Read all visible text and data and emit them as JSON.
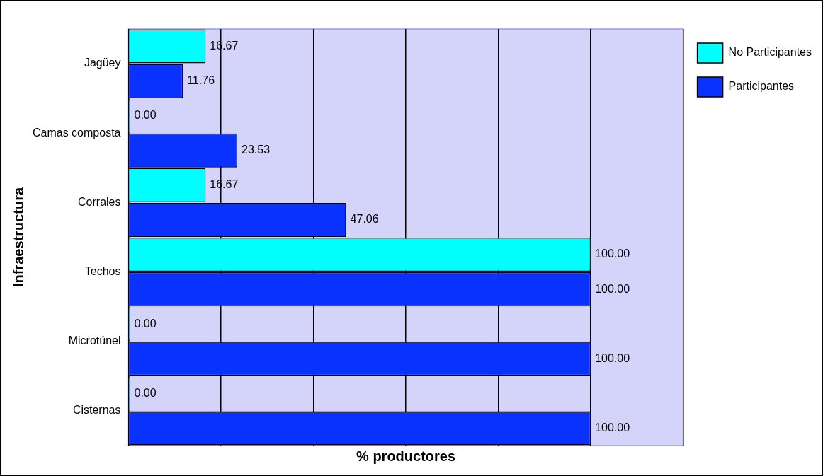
{
  "chart_data": {
    "type": "bar",
    "orientation": "horizontal",
    "xlabel": "% productores",
    "ylabel": "Infraestructura",
    "categories": [
      "Jagüey",
      "Camas composta",
      "Corrales",
      "Techos",
      "Microtúnel",
      "Cisternas"
    ],
    "series": [
      {
        "name": "No Participantes",
        "color": "#00ffff",
        "values": [
          16.67,
          0,
          16.67,
          100,
          0,
          0
        ],
        "value_labels": [
          "16.67",
          "0.00",
          "16.67",
          "100.00",
          "0.00",
          "0.00"
        ]
      },
      {
        "name": "Participantes",
        "color": "#0a32ff",
        "values": [
          11.76,
          23.53,
          47.06,
          100,
          100,
          100
        ],
        "value_labels": [
          "11.76",
          "23.53",
          "47.06",
          "100.00",
          "100.00",
          "100.00"
        ]
      }
    ],
    "xlim": [
      0,
      120
    ],
    "xticks": [
      {
        "value": 0,
        "label": null
      },
      {
        "value": 20,
        "label": null
      },
      {
        "value": 40,
        "label": null
      },
      {
        "value": 60,
        "label": null
      },
      {
        "value": 80,
        "label": null
      },
      {
        "value": 100,
        "label": null
      },
      {
        "value": 120,
        "label": null
      }
    ],
    "grid": "x",
    "legend": "right",
    "tick_labels": "y"
  }
}
